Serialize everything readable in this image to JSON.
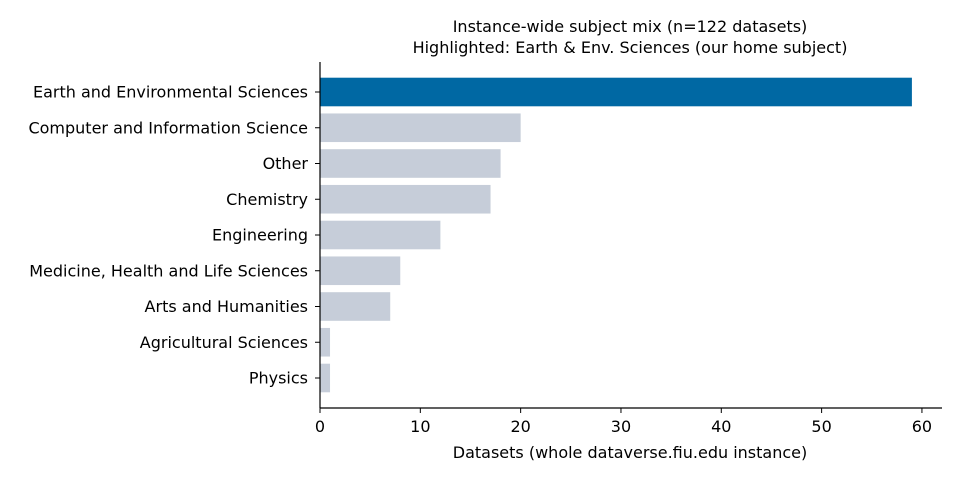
{
  "chart_data": {
    "type": "bar",
    "orientation": "horizontal",
    "title": "Instance-wide subject mix (n=122 datasets)",
    "subtitle": "Highlighted: Earth & Env. Sciences (our home subject)",
    "xlabel": "Datasets (whole dataverse.fiu.edu instance)",
    "ylabel": "",
    "categories": [
      "Earth and Environmental Sciences",
      "Computer and Information Science",
      "Other",
      "Chemistry",
      "Engineering",
      "Medicine, Health and Life Sciences",
      "Arts and Humanities",
      "Agricultural Sciences",
      "Physics"
    ],
    "values": [
      59,
      20,
      18,
      17,
      12,
      8,
      7,
      1,
      1
    ],
    "highlighted": "Earth and Environmental Sciences",
    "colors": {
      "highlight": "#0068a3",
      "default": "#c6cdd9"
    },
    "xlim": [
      0,
      62
    ],
    "xticks": [
      0,
      10,
      20,
      30,
      40,
      50,
      60
    ],
    "grid": false
  }
}
